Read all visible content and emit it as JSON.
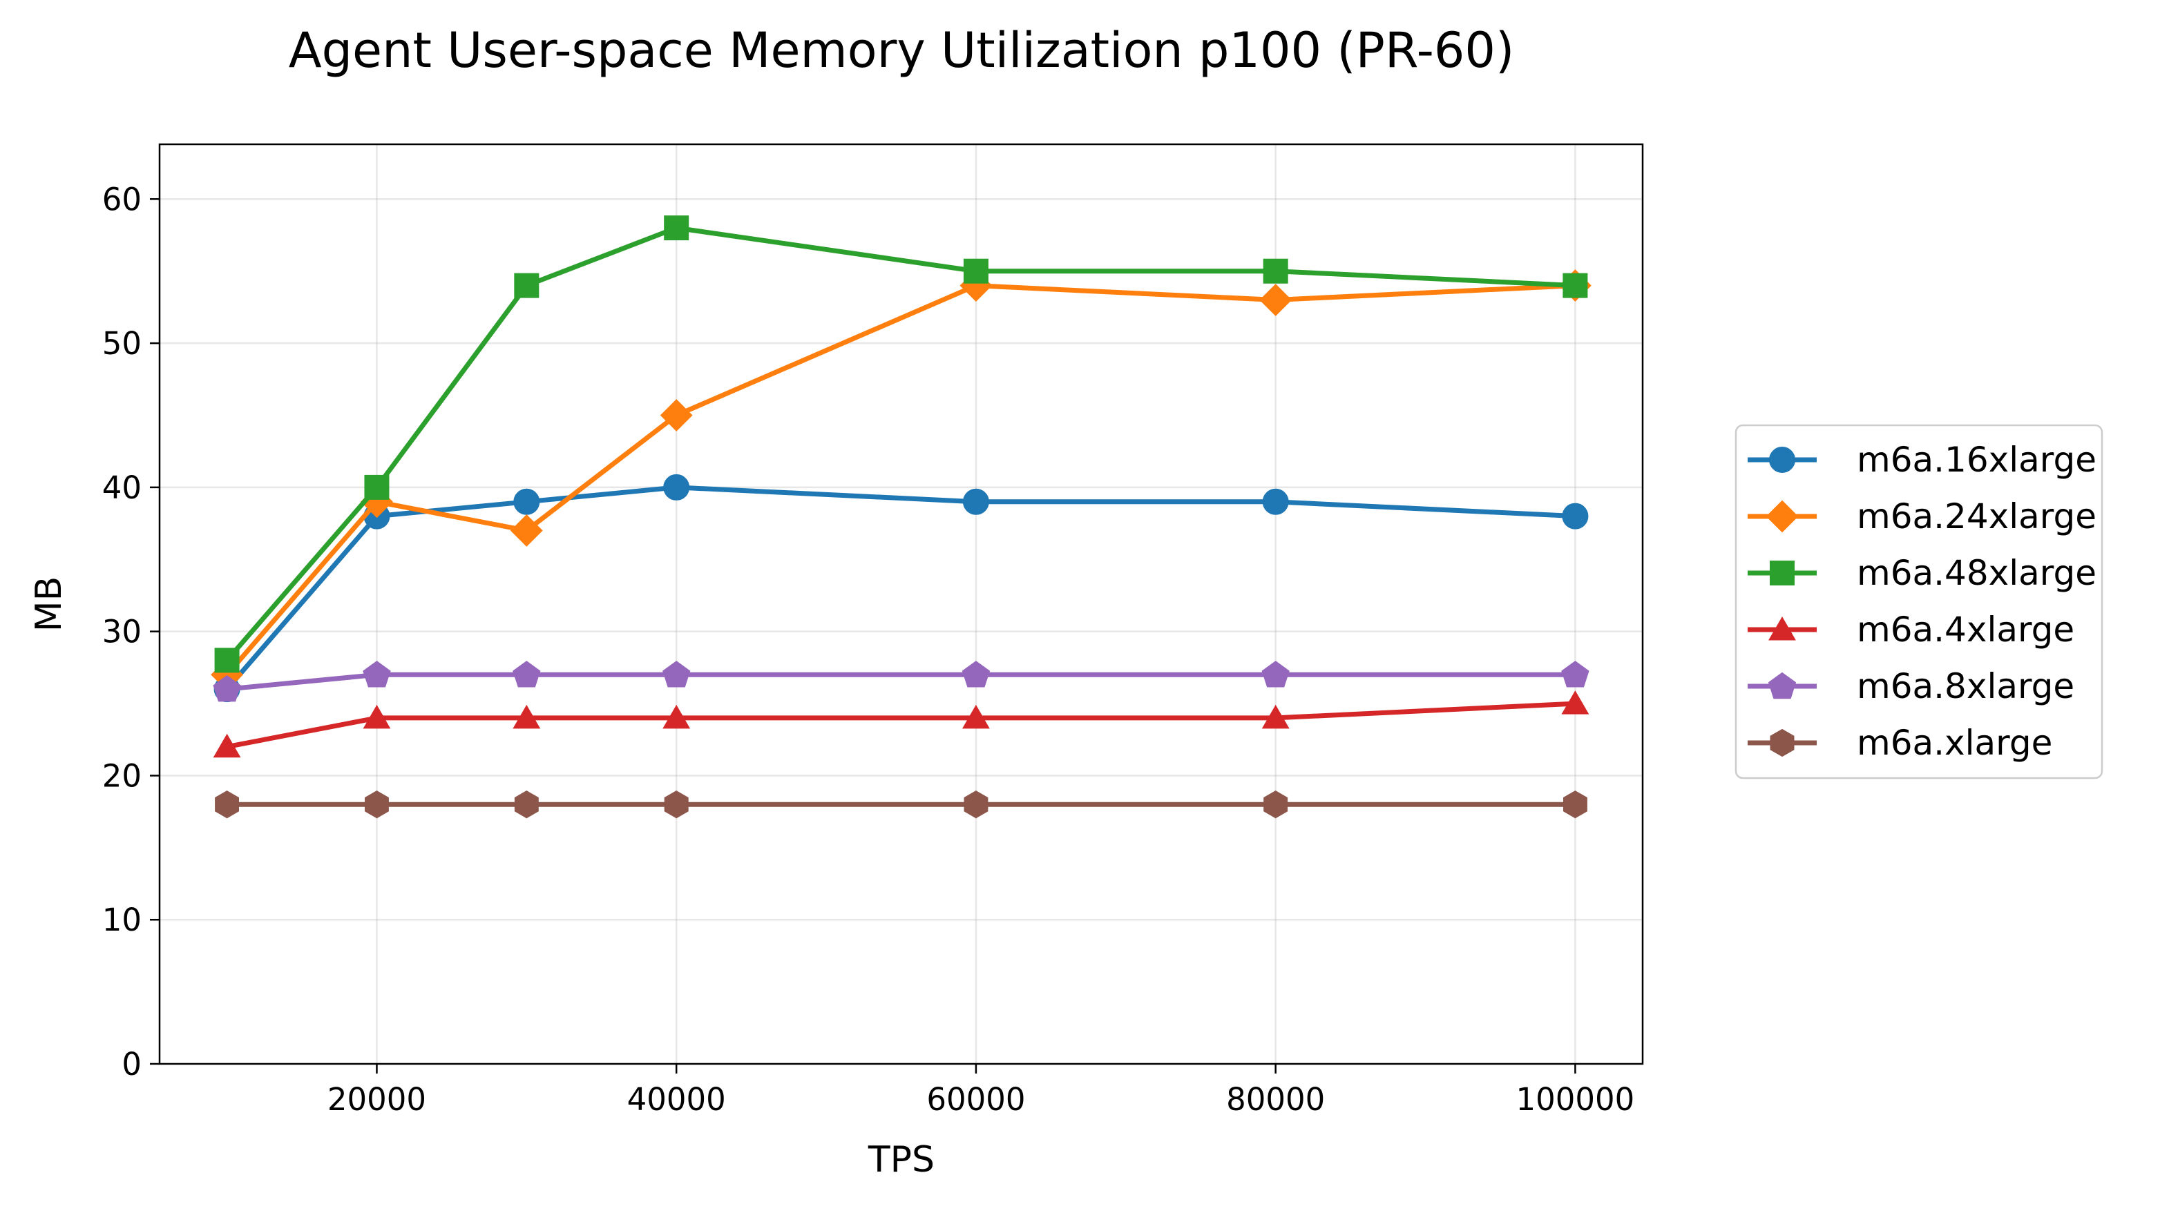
{
  "chart_data": {
    "type": "line",
    "title": "Agent User-space Memory Utilization p100 (PR-60)",
    "xlabel": "TPS",
    "ylabel": "MB",
    "x": [
      10000,
      20000,
      30000,
      40000,
      60000,
      80000,
      100000
    ],
    "xlim": [
      5500,
      104500
    ],
    "ylim": [
      0,
      63.8
    ],
    "xticks": [
      20000,
      40000,
      60000,
      80000,
      100000
    ],
    "yticks": [
      0,
      10,
      20,
      30,
      40,
      50,
      60
    ],
    "grid": true,
    "legend_position": "center-right-outside",
    "series": [
      {
        "name": "m6a.16xlarge",
        "color": "#1f77b4",
        "marker": "circle",
        "values": [
          26,
          38,
          39,
          40,
          39,
          39,
          38
        ]
      },
      {
        "name": "m6a.24xlarge",
        "color": "#ff7f0e",
        "marker": "diamond",
        "values": [
          27,
          39,
          37,
          45,
          54,
          53,
          54
        ]
      },
      {
        "name": "m6a.48xlarge",
        "color": "#2ca02c",
        "marker": "square",
        "values": [
          28,
          40,
          54,
          58,
          55,
          55,
          54
        ]
      },
      {
        "name": "m6a.4xlarge",
        "color": "#d62728",
        "marker": "triangle",
        "values": [
          22,
          24,
          24,
          24,
          24,
          24,
          25
        ]
      },
      {
        "name": "m6a.8xlarge",
        "color": "#9467bd",
        "marker": "pentagon",
        "values": [
          26,
          27,
          27,
          27,
          27,
          27,
          27
        ]
      },
      {
        "name": "m6a.xlarge",
        "color": "#8c564b",
        "marker": "hexagon",
        "values": [
          18,
          18,
          18,
          18,
          18,
          18,
          18
        ]
      }
    ]
  }
}
